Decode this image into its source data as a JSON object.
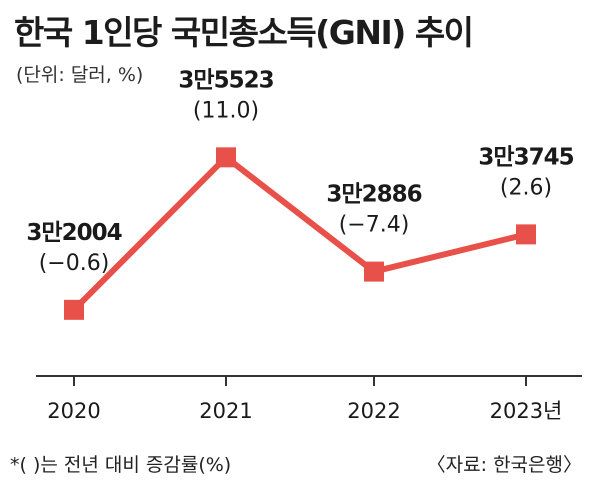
{
  "title": "한국 1인당 국민총소득(GNI) 추이",
  "unit_note": "(단위: 달러, %)",
  "footnote": "*(     )는 전년 대비 증감률(%)",
  "source": "〈자료: 한국은행〉",
  "colors": {
    "line": "#e8504a",
    "axis": "#333333",
    "text": "#1a1a1a"
  },
  "chart_data": {
    "type": "line",
    "title": "한국 1인당 국민총소득(GNI) 추이",
    "xlabel": "",
    "ylabel": "",
    "categories": [
      "2020",
      "2021",
      "2022",
      "2023년"
    ],
    "values": [
      32004,
      35523,
      32886,
      33745
    ],
    "value_labels": [
      "3만2004",
      "3만5523",
      "3만2886",
      "3만3745"
    ],
    "change_labels": [
      "(−0.6)",
      "(11.0)",
      "(−7.4)",
      "(2.6)"
    ],
    "change_values": [
      -0.6,
      11.0,
      -7.4,
      2.6
    ],
    "ylim": [
      30500,
      36500
    ],
    "grid": false,
    "legend": "none"
  }
}
